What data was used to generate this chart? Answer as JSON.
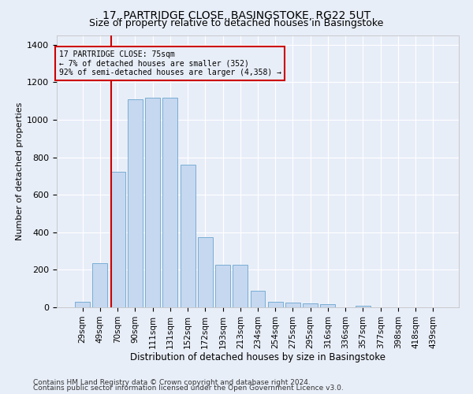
{
  "title1": "17, PARTRIDGE CLOSE, BASINGSTOKE, RG22 5UT",
  "title2": "Size of property relative to detached houses in Basingstoke",
  "xlabel": "Distribution of detached houses by size in Basingstoke",
  "ylabel": "Number of detached properties",
  "footnote1": "Contains HM Land Registry data © Crown copyright and database right 2024.",
  "footnote2": "Contains public sector information licensed under the Open Government Licence v3.0.",
  "bar_labels": [
    "29sqm",
    "49sqm",
    "70sqm",
    "90sqm",
    "111sqm",
    "131sqm",
    "152sqm",
    "172sqm",
    "193sqm",
    "213sqm",
    "234sqm",
    "254sqm",
    "275sqm",
    "295sqm",
    "316sqm",
    "336sqm",
    "357sqm",
    "377sqm",
    "398sqm",
    "418sqm",
    "439sqm"
  ],
  "bar_values": [
    30,
    235,
    725,
    1110,
    1120,
    1120,
    760,
    375,
    225,
    225,
    90,
    30,
    25,
    22,
    15,
    0,
    10,
    0,
    0,
    0,
    0
  ],
  "bar_color": "#c5d8f0",
  "bar_edge_color": "#7aadd4",
  "property_line_color": "#cc0000",
  "annotation_box_text": "17 PARTRIDGE CLOSE: 75sqm\n← 7% of detached houses are smaller (352)\n92% of semi-detached houses are larger (4,358) →",
  "annotation_box_color": "#cc0000",
  "ylim": [
    0,
    1450
  ],
  "background_color": "#e8eef8",
  "grid_color": "#ffffff",
  "title1_fontsize": 10,
  "title2_fontsize": 9,
  "axis_fontsize": 7.5,
  "ylabel_fontsize": 8,
  "xlabel_fontsize": 8.5,
  "footnote_fontsize": 6.5
}
